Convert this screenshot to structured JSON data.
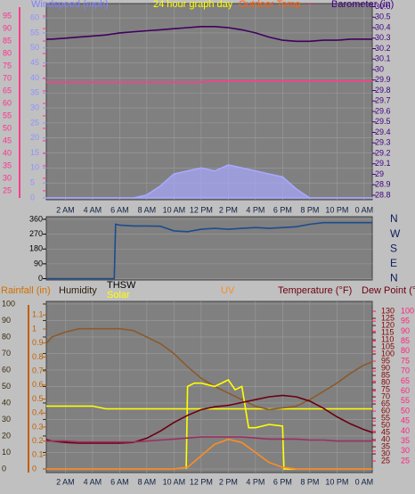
{
  "chart_data": [
    {
      "type": "line",
      "title": "24 hour graph day",
      "annotation": "---",
      "x": [
        0.6,
        1,
        2,
        3,
        4,
        5,
        6,
        7,
        8,
        9,
        10,
        11,
        12,
        13,
        14,
        15,
        16,
        17,
        18,
        19,
        20,
        21,
        22,
        23,
        24,
        24.6
      ],
      "xlim": [
        0.6,
        24.6
      ],
      "xticks": [
        {
          "value": 2,
          "label": "2 AM"
        },
        {
          "value": 4,
          "label": "4 AM"
        },
        {
          "value": 6,
          "label": "6 AM"
        },
        {
          "value": 8,
          "label": "8 AM"
        },
        {
          "value": 10,
          "label": "10 AM"
        },
        {
          "value": 12,
          "label": "12 PM"
        },
        {
          "value": 14,
          "label": "2 PM"
        },
        {
          "value": 16,
          "label": "4 PM"
        },
        {
          "value": 18,
          "label": "6 PM"
        },
        {
          "value": 20,
          "label": "8 PM"
        },
        {
          "value": 22,
          "label": "10 PM"
        },
        {
          "value": 24,
          "label": "0 AM"
        }
      ],
      "ylim": [
        -0.6,
        64.8
      ],
      "yticks": [
        0,
        5,
        10,
        15,
        20,
        25,
        30,
        35,
        40,
        45,
        50,
        55,
        60
      ],
      "y2lim": [
        28.757,
        30.63
      ],
      "y2ticks": [
        28.8,
        28.9,
        29,
        29.1,
        29.2,
        29.3,
        29.4,
        29.5,
        29.6,
        29.7,
        29.8,
        29.9,
        30,
        30.1,
        30.2,
        30.3,
        30.4,
        30.5,
        30.6
      ],
      "y3lim": [
        21.4,
        100
      ],
      "y3ticks": [
        25,
        30,
        35,
        40,
        45,
        50,
        55,
        60,
        65,
        70,
        75,
        80,
        85,
        90,
        95
      ],
      "grid": true,
      "series": [
        {
          "name": "Windspeed (mph)",
          "color": "#a8a8ff",
          "area": true,
          "values": [
            0,
            0,
            0,
            0,
            0,
            0,
            0,
            0,
            1,
            4,
            8,
            9,
            10,
            9,
            11,
            10,
            9,
            8,
            7,
            3,
            0,
            0,
            0,
            0,
            0,
            0
          ]
        },
        {
          "name": "Outdoor Temp.",
          "color": "#ff3c8c",
          "axis": "y3",
          "values": [
            68.5,
            68.5,
            68.5,
            68.5,
            68.5,
            68.5,
            68.5,
            68.5,
            68.5,
            68.5,
            68.5,
            68.5,
            68.5,
            69,
            69,
            69,
            69,
            69,
            69,
            69,
            69,
            69,
            69,
            69,
            69,
            69
          ]
        },
        {
          "name": "Barometer (in)",
          "color": "#400060",
          "axis": "y2",
          "values": [
            30.29,
            30.29,
            30.3,
            30.31,
            30.32,
            30.33,
            30.35,
            30.36,
            30.37,
            30.38,
            30.39,
            30.4,
            30.41,
            30.41,
            30.4,
            30.38,
            30.35,
            30.31,
            30.28,
            30.27,
            30.27,
            30.28,
            30.28,
            30.29,
            30.29,
            30.29
          ]
        }
      ]
    },
    {
      "type": "line",
      "x": [
        0.6,
        1,
        2,
        3,
        4,
        5,
        5.6,
        5.7,
        6,
        7,
        8,
        9,
        10,
        11,
        12,
        13,
        14,
        15,
        16,
        17,
        18,
        19,
        20,
        21,
        22,
        23,
        24,
        24.6
      ],
      "xlim": [
        0.6,
        24.6
      ],
      "ylim": [
        -8,
        376
      ],
      "yticks": [
        0,
        90,
        180,
        270,
        360
      ],
      "direction_labels": [
        "N",
        "W",
        "S",
        "E",
        "N"
      ],
      "grid": true,
      "series": [
        {
          "color": "#1c4c8c",
          "values": [
            0,
            0,
            0,
            0,
            0,
            0,
            0,
            330,
            325,
            320,
            320,
            318,
            290,
            285,
            300,
            305,
            300,
            305,
            310,
            305,
            310,
            315,
            330,
            340,
            340,
            340,
            340,
            340
          ]
        }
      ]
    },
    {
      "type": "line",
      "annotation": "THSW",
      "x": [
        0.6,
        1,
        2,
        3,
        4,
        5,
        6,
        7,
        8,
        9,
        10,
        11,
        12,
        13,
        14,
        15,
        16,
        17,
        18,
        19,
        20,
        21,
        22,
        23,
        24,
        24.6
      ],
      "xlim": [
        0.6,
        24.6
      ],
      "xticks": [
        {
          "value": 2,
          "label": "2 AM"
        },
        {
          "value": 4,
          "label": "4 AM"
        },
        {
          "value": 6,
          "label": "6 AM"
        },
        {
          "value": 8,
          "label": "8 AM"
        },
        {
          "value": 10,
          "label": "10 AM"
        },
        {
          "value": 12,
          "label": "12 PM"
        },
        {
          "value": 14,
          "label": "2 PM"
        },
        {
          "value": 16,
          "label": "4 PM"
        },
        {
          "value": 18,
          "label": "6 PM"
        },
        {
          "value": 20,
          "label": "8 PM"
        },
        {
          "value": 22,
          "label": "10 PM"
        },
        {
          "value": 24,
          "label": "0 AM"
        }
      ],
      "ylim": [
        -2.2,
        101.6
      ],
      "yticks": [
        0,
        10,
        20,
        30,
        40,
        50,
        60,
        70,
        80,
        90,
        100
      ],
      "y2lim": [
        16.9,
        136.9
      ],
      "y2ticks": [
        25,
        30,
        35,
        40,
        45,
        50,
        55,
        60,
        65,
        70,
        75,
        80,
        85,
        90,
        95,
        100,
        105,
        110,
        115,
        120,
        125,
        130
      ],
      "y3lim": [
        -0.025,
        1.197
      ],
      "y3ticks": [
        0,
        0.1,
        0.2,
        0.3,
        0.4,
        0.5,
        0.6,
        0.7,
        0.8,
        0.9,
        1,
        1.1
      ],
      "y4lim": [
        19.2,
        104.9
      ],
      "y4ticks": [
        25,
        30,
        35,
        40,
        45,
        50,
        55,
        60,
        65,
        70,
        75,
        80,
        85,
        90,
        95,
        100
      ],
      "grid": true,
      "series": [
        {
          "name": "Rainfall (in)",
          "color": "#ffff00",
          "axis": "y3",
          "values": [
            0.45,
            0.45,
            0.45,
            0.45,
            0.45,
            0.43,
            0.43,
            0.43,
            0.43,
            0.43,
            0.43,
            0.43,
            0.43,
            0.43,
            0.43,
            0.43,
            0.43,
            0.43,
            0.43,
            0.43,
            0.43,
            0.43,
            0.43,
            0.43,
            0.43,
            0.43
          ]
        },
        {
          "name": "Humidity",
          "color": "#8b5a2b",
          "values": [
            76,
            80,
            83,
            85,
            85,
            85,
            85,
            84,
            80,
            76,
            70,
            62,
            55,
            50,
            46,
            42,
            38,
            36,
            37,
            38,
            42,
            47,
            52,
            58,
            63,
            65
          ]
        },
        {
          "name": "Solar",
          "color": "#ffff00",
          "x": [
            10.9,
            11,
            11.5,
            12,
            13,
            14,
            14.5,
            15,
            15.5,
            16,
            17,
            18,
            18.1,
            19
          ],
          "values": [
            0,
            50,
            52,
            52,
            50,
            54,
            48,
            50,
            25,
            25,
            27,
            26,
            0,
            0
          ]
        },
        {
          "name": "UV",
          "color": "#ff8c20",
          "values": [
            0,
            0,
            0,
            0,
            0,
            0,
            0,
            0,
            0,
            0,
            0,
            1,
            8,
            15,
            18,
            16,
            10,
            4,
            1,
            0,
            0,
            0,
            0,
            0,
            0,
            0
          ]
        },
        {
          "name": "Temperature (°F)",
          "color": "#6a0010",
          "axis": "y2",
          "values": [
            40,
            39,
            38,
            37.5,
            37.5,
            37.5,
            37.5,
            38,
            41,
            46,
            52,
            57,
            61,
            63,
            64,
            66,
            68,
            70,
            71,
            70,
            67,
            62,
            56,
            51,
            47,
            45
          ]
        },
        {
          "name": "Dew Point (°F)",
          "color": "#9a3060",
          "axis": "y4",
          "values": [
            35,
            35,
            35,
            34.5,
            34.5,
            34.5,
            34.5,
            34.5,
            35,
            35.5,
            36,
            36.5,
            37,
            37,
            37,
            37,
            36.5,
            36,
            36,
            36,
            35.5,
            35.5,
            35,
            35,
            35,
            35
          ]
        }
      ]
    }
  ]
}
